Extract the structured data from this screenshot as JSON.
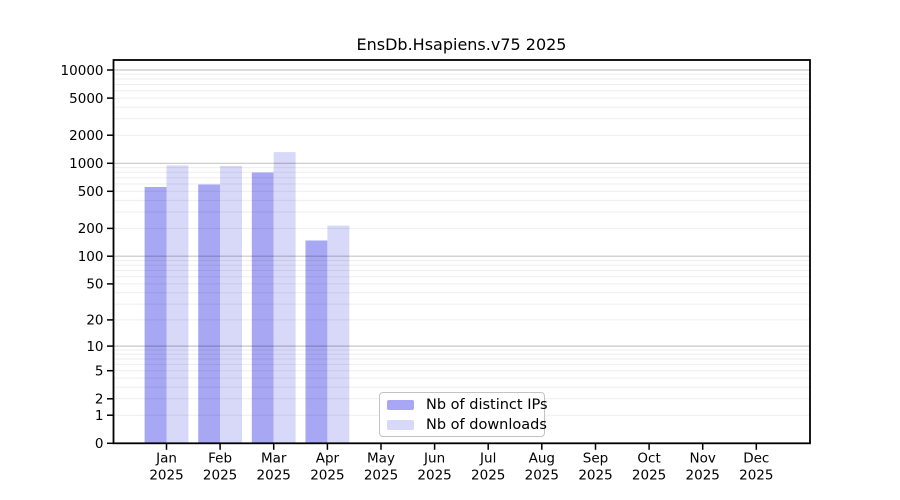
{
  "chart_data": {
    "type": "bar",
    "title": "EnsDb.Hsapiens.v75 2025",
    "categories": [
      "Jan",
      "Feb",
      "Mar",
      "Apr",
      "May",
      "Jun",
      "Jul",
      "Aug",
      "Sep",
      "Oct",
      "Nov",
      "Dec"
    ],
    "year": "2025",
    "series": [
      {
        "name": "Nb of distinct IPs",
        "color": "#a7a7f3",
        "values": [
          557,
          592,
          797,
          148,
          0,
          0,
          0,
          0,
          0,
          0,
          0,
          0
        ]
      },
      {
        "name": "Nb of downloads",
        "color": "#d8d8f8",
        "values": [
          948,
          934,
          1317,
          214,
          0,
          0,
          0,
          0,
          0,
          0,
          0,
          0
        ]
      }
    ],
    "y_ticks": [
      0,
      1,
      2,
      5,
      10,
      20,
      50,
      100,
      200,
      500,
      1000,
      2000,
      5000,
      10000
    ],
    "y_scale": "log10(value+1)",
    "ylim": [
      0,
      10000
    ],
    "grid": true,
    "legend_position": "bottom-center",
    "colors": {
      "axis": "#000000",
      "background": "#ffffff",
      "major_grid": "#c7c7c7",
      "minor_grid": "#efefef"
    }
  }
}
